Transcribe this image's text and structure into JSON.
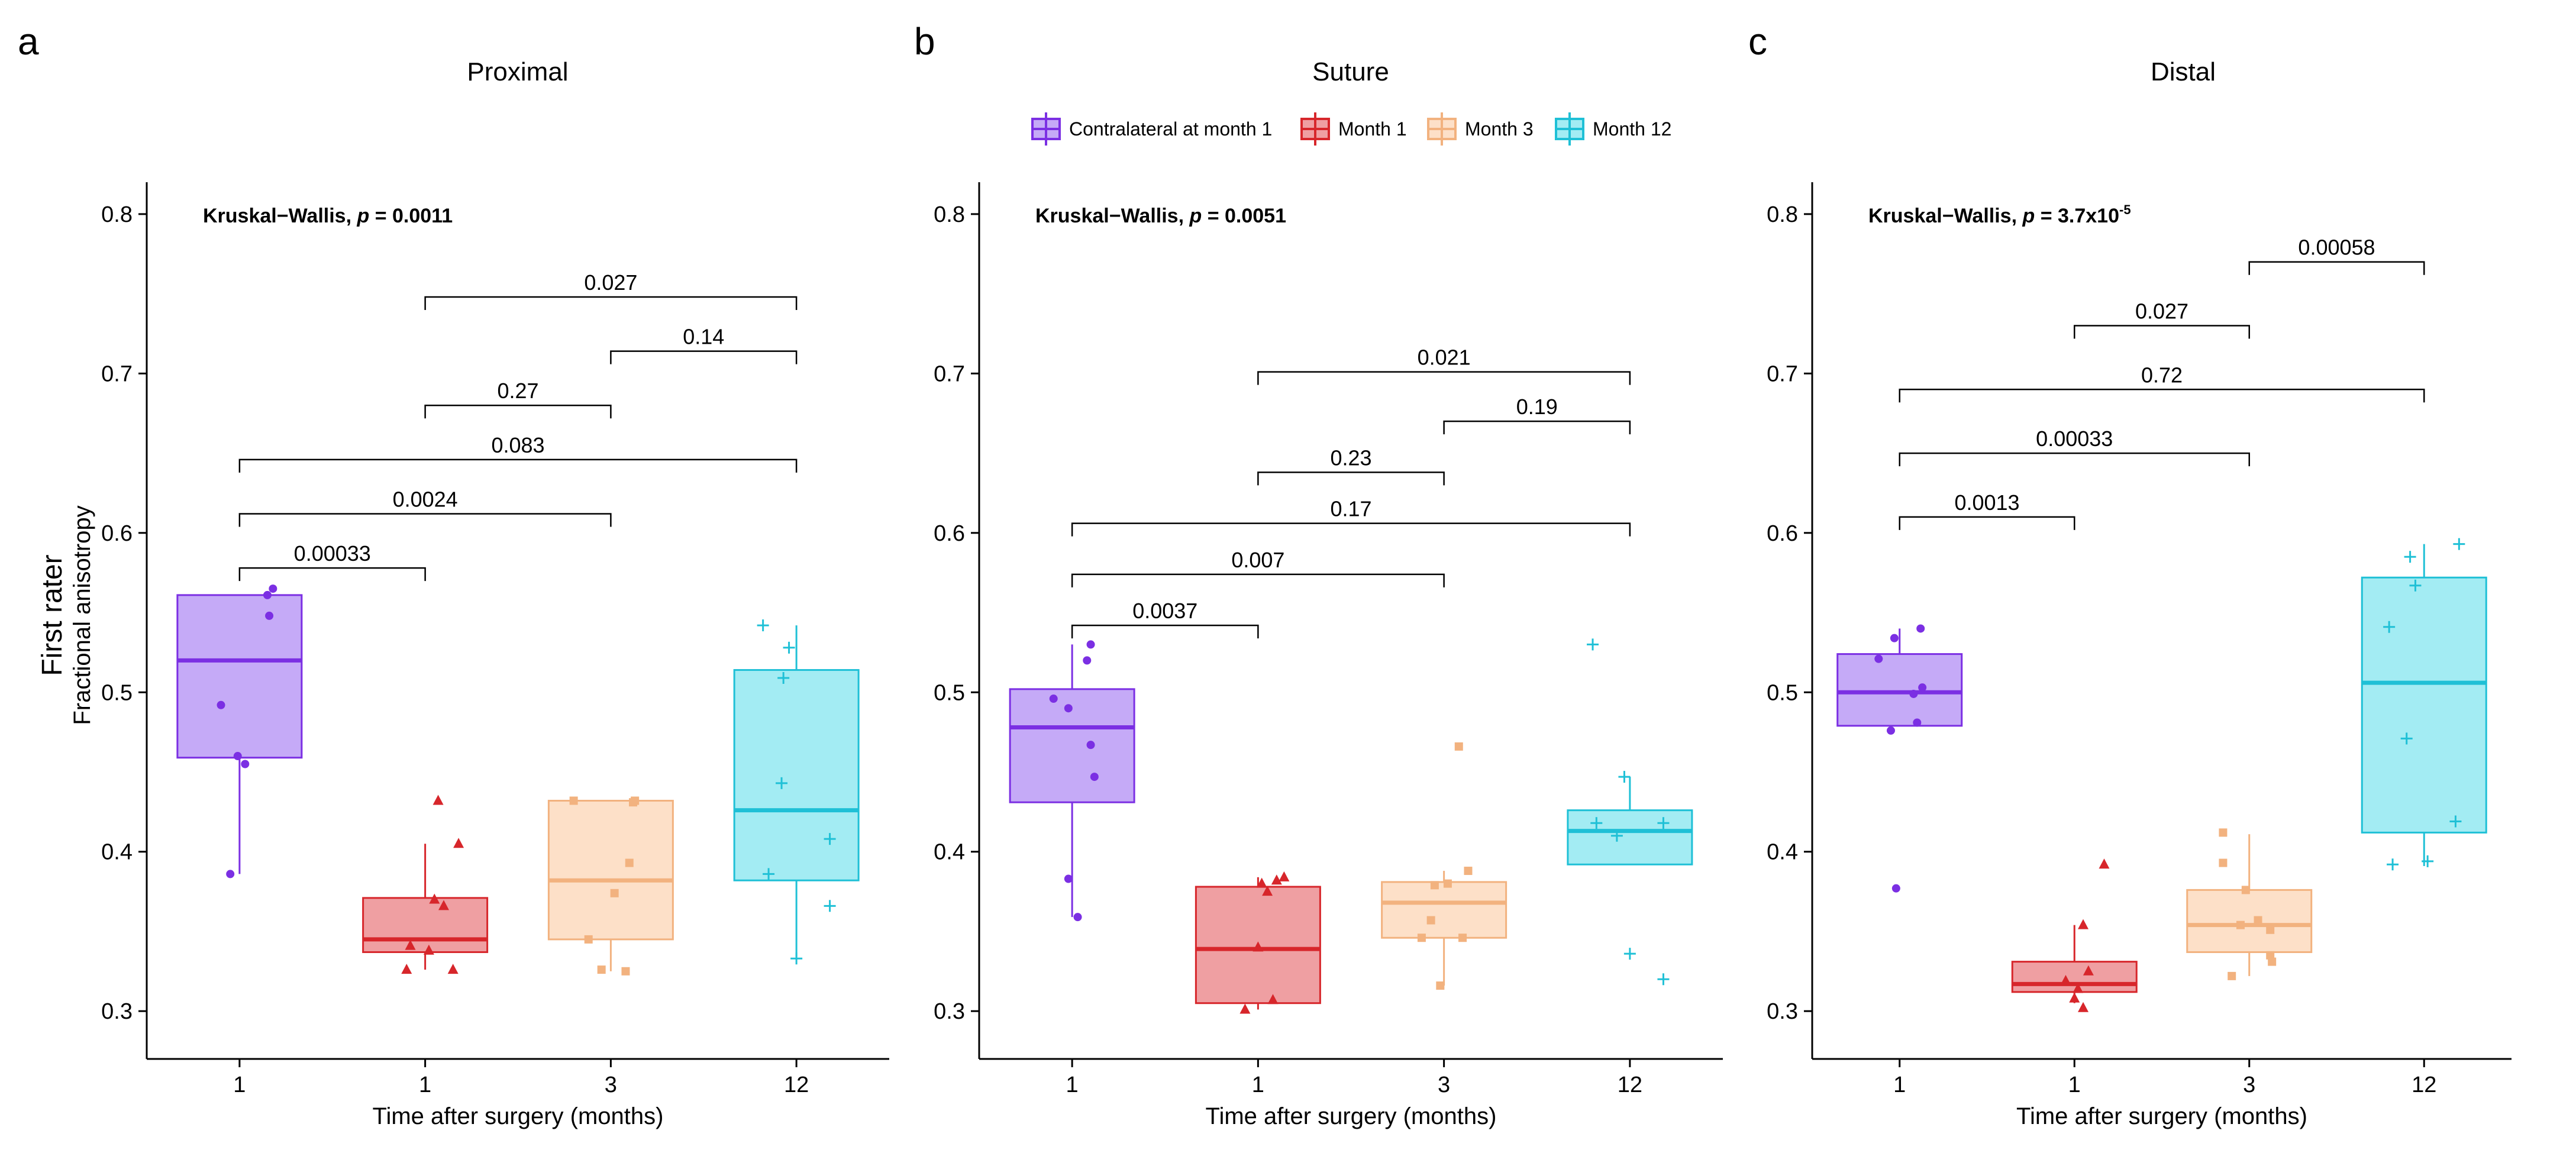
{
  "figure": {
    "y_axis_title": "First rater",
    "y_axis_subtitle": "Fractional anisotropy"
  },
  "legend": {
    "entries": [
      {
        "label": "Contralateral at month 1",
        "color": "#7b2fe3",
        "fill": "#c5aaf7"
      },
      {
        "label": "Month 1",
        "color": "#d7262b",
        "fill": "#ef9fa2"
      },
      {
        "label": "Month 3",
        "color": "#f2b27f",
        "fill": "#fde0c8"
      },
      {
        "label": "Month 12",
        "color": "#1fc0d6",
        "fill": "#a3ecf3"
      }
    ]
  },
  "chart_data": [
    {
      "type": "box",
      "panel": "a",
      "title": "Proximal",
      "xlabel": "Time after surgery (months)",
      "ylabel": "First rater / Fractional anisotropy",
      "ylim": [
        0.27,
        0.82
      ],
      "yticks": [
        0.3,
        0.4,
        0.5,
        0.6,
        0.7,
        0.8
      ],
      "ytick_labels": [
        "0.3",
        "0.4",
        "0.5",
        "0.6",
        "0.7",
        "0.8"
      ],
      "categories": [
        "1",
        "1",
        "3",
        "12"
      ],
      "annotation": {
        "prefix": "Kruskal−Wallis, ",
        "p": "p",
        "eq": " = ",
        "value": "0.0011"
      },
      "boxes": [
        {
          "q1": 0.459,
          "median": 0.52,
          "q3": 0.561,
          "whisker_low": 0.386,
          "whisker_high": 0.561
        },
        {
          "q1": 0.337,
          "median": 0.345,
          "q3": 0.371,
          "whisker_low": 0.326,
          "whisker_high": 0.405
        },
        {
          "q1": 0.345,
          "median": 0.382,
          "q3": 0.432,
          "whisker_low": 0.325,
          "whisker_high": 0.432
        },
        {
          "q1": 0.382,
          "median": 0.426,
          "q3": 0.514,
          "whisker_low": 0.334,
          "whisker_high": 0.542
        }
      ],
      "points": [
        [
          {
            "dx": -0.05,
            "y": 0.386
          },
          {
            "dx": -0.1,
            "y": 0.492
          },
          {
            "dx": -0.01,
            "y": 0.46
          },
          {
            "dx": 0.03,
            "y": 0.455
          },
          {
            "dx": 0.15,
            "y": 0.561
          },
          {
            "dx": 0.18,
            "y": 0.565
          },
          {
            "dx": 0.16,
            "y": 0.548
          }
        ],
        [
          {
            "dx": -0.1,
            "y": 0.326
          },
          {
            "dx": -0.08,
            "y": 0.341
          },
          {
            "dx": 0.02,
            "y": 0.338
          },
          {
            "dx": 0.05,
            "y": 0.37
          },
          {
            "dx": 0.07,
            "y": 0.432
          },
          {
            "dx": 0.1,
            "y": 0.366
          },
          {
            "dx": 0.15,
            "y": 0.326
          },
          {
            "dx": 0.18,
            "y": 0.405
          }
        ],
        [
          {
            "dx": -0.2,
            "y": 0.432
          },
          {
            "dx": -0.12,
            "y": 0.345
          },
          {
            "dx": -0.05,
            "y": 0.326
          },
          {
            "dx": 0.02,
            "y": 0.374
          },
          {
            "dx": 0.08,
            "y": 0.325
          },
          {
            "dx": 0.1,
            "y": 0.393
          },
          {
            "dx": 0.12,
            "y": 0.431
          },
          {
            "dx": 0.13,
            "y": 0.432
          }
        ],
        [
          {
            "dx": -0.18,
            "y": 0.542
          },
          {
            "dx": -0.15,
            "y": 0.386
          },
          {
            "dx": -0.08,
            "y": 0.443
          },
          {
            "dx": -0.07,
            "y": 0.509
          },
          {
            "dx": -0.04,
            "y": 0.528
          },
          {
            "dx": 0.0,
            "y": 0.333
          },
          {
            "dx": 0.18,
            "y": 0.408
          },
          {
            "dx": 0.18,
            "y": 0.366
          }
        ]
      ],
      "comparisons": [
        {
          "from": 0,
          "to": 1,
          "y": 0.578,
          "label": "0.00033"
        },
        {
          "from": 0,
          "to": 2,
          "y": 0.612,
          "label": "0.0024"
        },
        {
          "from": 0,
          "to": 3,
          "y": 0.646,
          "label": "0.083"
        },
        {
          "from": 1,
          "to": 2,
          "y": 0.68,
          "label": "0.27"
        },
        {
          "from": 2,
          "to": 3,
          "y": 0.714,
          "label": "0.14"
        },
        {
          "from": 1,
          "to": 3,
          "y": 0.748,
          "label": "0.027"
        }
      ]
    },
    {
      "type": "box",
      "panel": "b",
      "title": "Suture",
      "xlabel": "Time after surgery (months)",
      "ylabel": "",
      "ylim": [
        0.27,
        0.82
      ],
      "yticks": [
        0.3,
        0.4,
        0.5,
        0.6,
        0.7,
        0.8
      ],
      "ytick_labels": [
        "0.3",
        "0.4",
        "0.5",
        "0.6",
        "0.7",
        "0.8"
      ],
      "categories": [
        "1",
        "1",
        "3",
        "12"
      ],
      "annotation": {
        "prefix": "Kruskal−Wallis, ",
        "p": "p",
        "eq": " = ",
        "value": "0.0051"
      },
      "boxes": [
        {
          "q1": 0.431,
          "median": 0.478,
          "q3": 0.502,
          "whisker_low": 0.359,
          "whisker_high": 0.53
        },
        {
          "q1": 0.305,
          "median": 0.339,
          "q3": 0.378,
          "whisker_low": 0.301,
          "whisker_high": 0.384
        },
        {
          "q1": 0.346,
          "median": 0.368,
          "q3": 0.381,
          "whisker_low": 0.316,
          "whisker_high": 0.388
        },
        {
          "q1": 0.392,
          "median": 0.413,
          "q3": 0.426,
          "whisker_low": 0.392,
          "whisker_high": 0.447
        }
      ],
      "points": [
        [
          {
            "dx": -0.1,
            "y": 0.496
          },
          {
            "dx": -0.02,
            "y": 0.383
          },
          {
            "dx": -0.02,
            "y": 0.49
          },
          {
            "dx": 0.03,
            "y": 0.359
          },
          {
            "dx": 0.08,
            "y": 0.52
          },
          {
            "dx": 0.1,
            "y": 0.53
          },
          {
            "dx": 0.1,
            "y": 0.467
          },
          {
            "dx": 0.12,
            "y": 0.447
          }
        ],
        [
          {
            "dx": -0.07,
            "y": 0.301
          },
          {
            "dx": 0.0,
            "y": 0.34
          },
          {
            "dx": 0.02,
            "y": 0.38
          },
          {
            "dx": 0.05,
            "y": 0.375
          },
          {
            "dx": 0.08,
            "y": 0.307
          },
          {
            "dx": 0.1,
            "y": 0.382
          },
          {
            "dx": 0.14,
            "y": 0.384
          }
        ],
        [
          {
            "dx": -0.12,
            "y": 0.346
          },
          {
            "dx": -0.05,
            "y": 0.379
          },
          {
            "dx": -0.07,
            "y": 0.357
          },
          {
            "dx": -0.02,
            "y": 0.316
          },
          {
            "dx": 0.02,
            "y": 0.38
          },
          {
            "dx": 0.08,
            "y": 0.466
          },
          {
            "dx": 0.1,
            "y": 0.346
          },
          {
            "dx": 0.13,
            "y": 0.388
          }
        ],
        [
          {
            "dx": -0.2,
            "y": 0.53
          },
          {
            "dx": -0.18,
            "y": 0.418
          },
          {
            "dx": -0.07,
            "y": 0.41
          },
          {
            "dx": -0.03,
            "y": 0.447
          },
          {
            "dx": 0.0,
            "y": 0.336
          },
          {
            "dx": 0.18,
            "y": 0.418
          },
          {
            "dx": 0.18,
            "y": 0.32
          }
        ]
      ],
      "comparisons": [
        {
          "from": 0,
          "to": 1,
          "y": 0.542,
          "label": "0.0037"
        },
        {
          "from": 0,
          "to": 2,
          "y": 0.574,
          "label": "0.007"
        },
        {
          "from": 0,
          "to": 3,
          "y": 0.606,
          "label": "0.17"
        },
        {
          "from": 1,
          "to": 2,
          "y": 0.638,
          "label": "0.23"
        },
        {
          "from": 2,
          "to": 3,
          "y": 0.67,
          "label": "0.19"
        },
        {
          "from": 1,
          "to": 3,
          "y": 0.701,
          "label": "0.021"
        }
      ]
    },
    {
      "type": "box",
      "panel": "c",
      "title": "Distal",
      "xlabel": "Time after surgery (months)",
      "ylabel": "",
      "ylim": [
        0.27,
        0.82
      ],
      "yticks": [
        0.3,
        0.4,
        0.5,
        0.6,
        0.7,
        0.8
      ],
      "ytick_labels": [
        "0.3",
        "0.4",
        "0.5",
        "0.6",
        "0.7",
        "0.8"
      ],
      "categories": [
        "1",
        "1",
        "3",
        "12"
      ],
      "annotation": {
        "prefix": "Kruskal−Wallis, ",
        "p": "p",
        "eq": " = ",
        "value": "3.7x10",
        "exponent": "-5"
      },
      "boxes": [
        {
          "q1": 0.479,
          "median": 0.5,
          "q3": 0.524,
          "whisker_low": 0.479,
          "whisker_high": 0.54
        },
        {
          "q1": 0.312,
          "median": 0.317,
          "q3": 0.331,
          "whisker_low": 0.305,
          "whisker_high": 0.354
        },
        {
          "q1": 0.337,
          "median": 0.354,
          "q3": 0.376,
          "whisker_low": 0.322,
          "whisker_high": 0.411
        },
        {
          "q1": 0.412,
          "median": 0.506,
          "q3": 0.572,
          "whisker_low": 0.391,
          "whisker_high": 0.593
        }
      ],
      "points": [
        [
          {
            "dx": -0.12,
            "y": 0.521
          },
          {
            "dx": -0.05,
            "y": 0.476
          },
          {
            "dx": -0.03,
            "y": 0.534
          },
          {
            "dx": -0.02,
            "y": 0.377
          },
          {
            "dx": 0.08,
            "y": 0.499
          },
          {
            "dx": 0.1,
            "y": 0.481
          },
          {
            "dx": 0.12,
            "y": 0.54
          },
          {
            "dx": 0.13,
            "y": 0.503
          }
        ],
        [
          {
            "dx": -0.05,
            "y": 0.319
          },
          {
            "dx": 0.0,
            "y": 0.308
          },
          {
            "dx": 0.02,
            "y": 0.314
          },
          {
            "dx": 0.05,
            "y": 0.354
          },
          {
            "dx": 0.05,
            "y": 0.302
          },
          {
            "dx": 0.08,
            "y": 0.325
          },
          {
            "dx": 0.17,
            "y": 0.392
          }
        ],
        [
          {
            "dx": -0.15,
            "y": 0.412
          },
          {
            "dx": -0.15,
            "y": 0.393
          },
          {
            "dx": -0.1,
            "y": 0.322
          },
          {
            "dx": -0.05,
            "y": 0.354
          },
          {
            "dx": -0.02,
            "y": 0.376
          },
          {
            "dx": 0.05,
            "y": 0.357
          },
          {
            "dx": 0.12,
            "y": 0.351
          },
          {
            "dx": 0.12,
            "y": 0.335
          },
          {
            "dx": 0.13,
            "y": 0.331
          }
        ],
        [
          {
            "dx": -0.18,
            "y": 0.392
          },
          {
            "dx": -0.2,
            "y": 0.541
          },
          {
            "dx": -0.1,
            "y": 0.471
          },
          {
            "dx": -0.08,
            "y": 0.585
          },
          {
            "dx": -0.05,
            "y": 0.567
          },
          {
            "dx": 0.02,
            "y": 0.394
          },
          {
            "dx": 0.18,
            "y": 0.419
          },
          {
            "dx": 0.2,
            "y": 0.593
          }
        ]
      ],
      "comparisons": [
        {
          "from": 0,
          "to": 1,
          "y": 0.61,
          "label": "0.0013"
        },
        {
          "from": 0,
          "to": 2,
          "y": 0.65,
          "label": "0.00033"
        },
        {
          "from": 0,
          "to": 3,
          "y": 0.69,
          "label": "0.72"
        },
        {
          "from": 1,
          "to": 2,
          "y": 0.73,
          "label": "0.027"
        },
        {
          "from": 2,
          "to": 3,
          "y": 0.77,
          "label": "0.00058"
        }
      ]
    }
  ]
}
